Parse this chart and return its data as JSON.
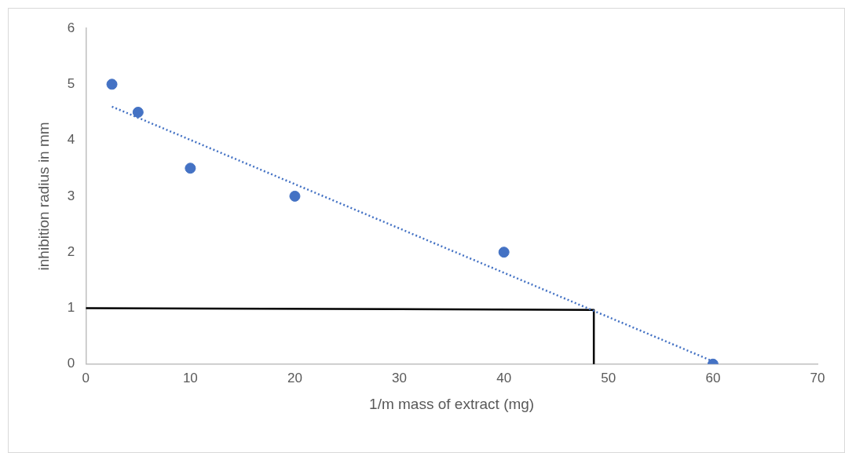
{
  "chart_data": {
    "type": "scatter",
    "xlabel": "1/m mass of extract (mg)",
    "ylabel": "inhibition radius in mm",
    "xlim": [
      0,
      70
    ],
    "xticks": [
      0,
      10,
      20,
      30,
      40,
      50,
      60,
      70
    ],
    "ylim": [
      0,
      6
    ],
    "yticks": [
      0,
      1,
      2,
      3,
      4,
      5,
      6
    ],
    "grid": false,
    "legend": false,
    "series": [
      {
        "type": "scatter",
        "color": "#4472c4",
        "marker": "circle",
        "x": [
          2.5,
          5,
          10,
          20,
          40,
          60
        ],
        "values": [
          5,
          4.5,
          3.5,
          3,
          2,
          0
        ]
      },
      {
        "type": "line",
        "color": "#4472c4",
        "line_style": "dotted",
        "marker": "none",
        "x": [
          2.5,
          60
        ],
        "values": [
          4.6,
          0.05
        ]
      },
      {
        "type": "line",
        "color": "#000000",
        "line_style": "solid",
        "marker": "none",
        "x": [
          0,
          48.6,
          48.6
        ],
        "values": [
          1,
          0.97,
          0
        ]
      }
    ]
  }
}
